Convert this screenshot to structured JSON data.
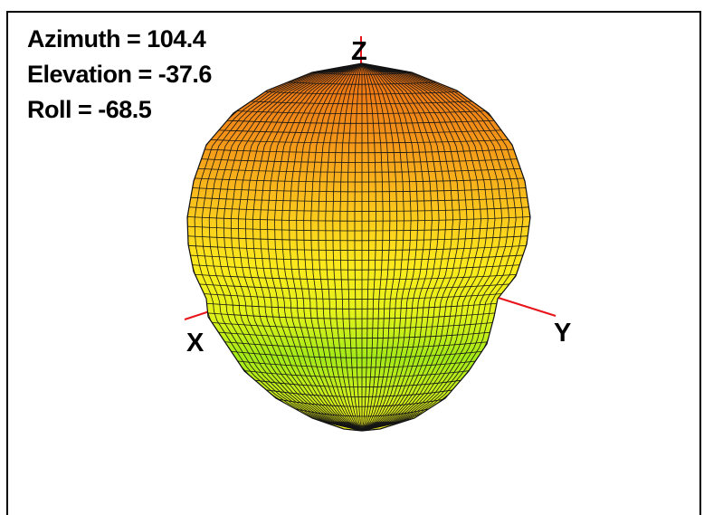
{
  "view": {
    "azimuth": "Azimuth = 104.4",
    "elevation": "Elevation = -37.6",
    "roll": "Roll = -68.5"
  },
  "axes": {
    "x_label": "X",
    "y_label": "Y",
    "z_label": "Z",
    "axis_color": "#e8141a"
  },
  "surface": {
    "colormap_top": "#f07a14",
    "colormap_mid": "#fbe418",
    "colormap_bottom": "#88e418",
    "mesh_color": "#111111"
  }
}
